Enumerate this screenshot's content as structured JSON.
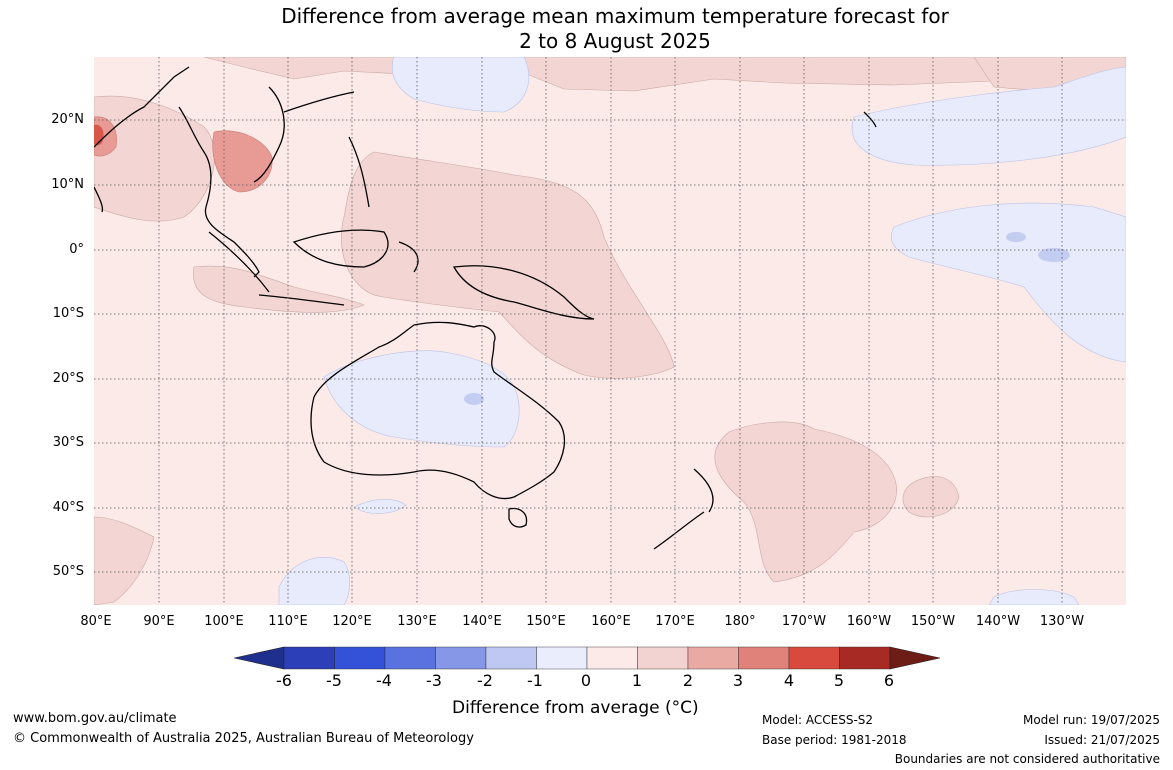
{
  "title": {
    "line1": "Difference from average mean maximum temperature forecast for",
    "line2": "2 to 8 August 2025"
  },
  "map": {
    "latitude_labels": [
      "20°N",
      "10°N",
      "0°",
      "10°S",
      "20°S",
      "30°S",
      "40°S",
      "50°S"
    ],
    "longitude_labels": [
      "80°E",
      "90°E",
      "100°E",
      "110°E",
      "120°E",
      "130°E",
      "140°E",
      "150°E",
      "160°E",
      "170°E",
      "180°",
      "170°W",
      "160°W",
      "150°W",
      "140°W",
      "130°W"
    ],
    "background_color": "#fbeae8"
  },
  "colorbar": {
    "ticks": [
      "-6",
      "-5",
      "-4",
      "-3",
      "-2",
      "-1",
      "0",
      "1",
      "2",
      "3",
      "4",
      "5",
      "6"
    ],
    "colors": [
      "#1f2f8e",
      "#2c3fb8",
      "#3352d8",
      "#5a72e0",
      "#8597e6",
      "#bec8f2",
      "#e9edfc",
      "#fbeae8",
      "#f3d3d1",
      "#e9aaa4",
      "#e0827a",
      "#d84a3d",
      "#a82a24",
      "#6e1c16"
    ],
    "label": "Difference from average (°C)"
  },
  "footer": {
    "website": "www.bom.gov.au/climate",
    "copyright": "© Commonwealth of Australia 2025, Australian Bureau of Meteorology",
    "model": "Model: ACCESS-S2",
    "base_period": "Base period: 1981-2018",
    "model_run": "Model run: 19/07/2025",
    "issued": "Issued: 21/07/2025",
    "disclaimer": "Boundaries are not considered authoritative"
  }
}
